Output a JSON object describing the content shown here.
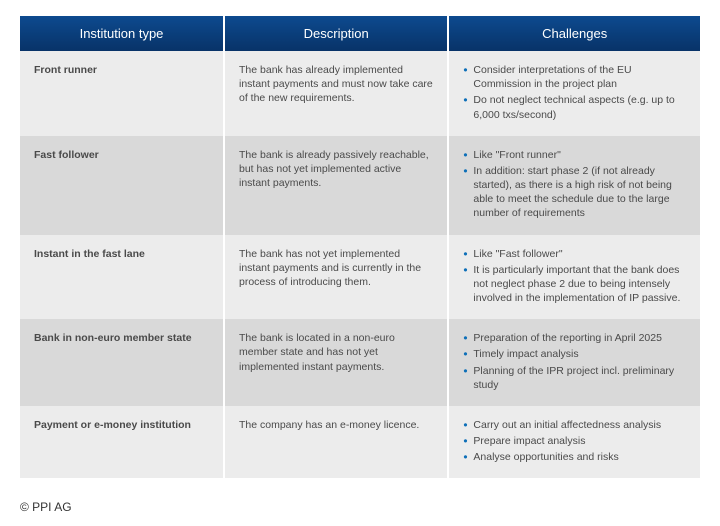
{
  "table": {
    "columns": [
      "Institution type",
      "Description",
      "Challenges"
    ],
    "header_bg": "#0a3d7a",
    "header_text_color": "#ffffff",
    "row_bg_even": "#d9d9d9",
    "row_bg_odd": "#ececec",
    "bullet_color": "#0d6fb8",
    "rows": [
      {
        "type": "Front runner",
        "description": "The bank has already implemented instant payments and must now take care of the new requirements.",
        "challenges": [
          "Consider interpretations of the EU Commission in the project plan",
          "Do not neglect technical aspects (e.g. up to 6,000 txs/second)"
        ]
      },
      {
        "type": "Fast follower",
        "description": "The bank is already passively reachable, but has not yet implemented active instant payments.",
        "challenges": [
          "Like \"Front runner\"",
          "In addition: start phase 2 (if not already started), as there is a high risk of not being able to meet the schedule due to the large number of requirements"
        ]
      },
      {
        "type": "Instant in the fast lane",
        "description": "The bank has not yet implemented instant payments and is currently in the process of introducing them.",
        "challenges": [
          "Like \"Fast follower\"",
          "It is particularly important that the bank does not neglect phase 2 due to being intensely involved in the implementation of IP passive."
        ]
      },
      {
        "type": "Bank in non-euro member state",
        "description": "The bank is located in a non-euro member state and has not yet implemented instant payments.",
        "challenges": [
          "Preparation of the reporting in April 2025",
          "Timely impact analysis",
          "Planning of the IPR project incl. preliminary study"
        ]
      },
      {
        "type": "Payment or e-money institution",
        "description": "The company has an e-money licence.",
        "challenges": [
          "Carry out an initial affectedness analysis",
          "Prepare impact analysis",
          "Analyse opportunities and risks"
        ]
      }
    ]
  },
  "copyright": "© PPI AG"
}
